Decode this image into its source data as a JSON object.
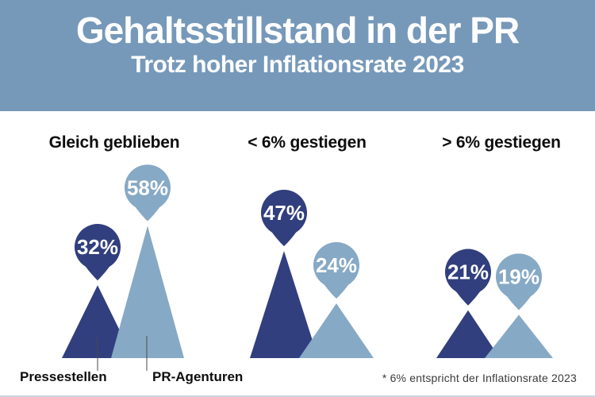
{
  "header": {
    "title": "Gehaltsstillstand in der PR",
    "subtitle": "Trotz hoher Inflationsrate 2023",
    "bg_color": "#7699ba",
    "text_color": "#ffffff"
  },
  "chart_data": {
    "type": "bar",
    "variant": "pictorial-triangles-with-balloon-labels",
    "unit": "%",
    "categories": [
      "Gleich geblieben",
      "< 6% gestiegen",
      "> 6% gestiegen"
    ],
    "series": [
      {
        "name": "Pressestellen",
        "values": [
          32,
          47,
          21
        ],
        "color": "#313f7e"
      },
      {
        "name": "PR-Agenturen",
        "values": [
          58,
          24,
          19
        ],
        "color": "#86a9c5"
      }
    ],
    "groups": [
      {
        "label": "Gleich geblieben",
        "values": {
          "pressestellen": 32,
          "pr_agenturen": 58
        }
      },
      {
        "label": "< 6% gestiegen",
        "values": {
          "pressestellen": 47,
          "pr_agenturen": 24
        }
      },
      {
        "label": "> 6% gestiegen",
        "values": {
          "pressestellen": 21,
          "pr_agenturen": 19
        }
      }
    ],
    "value_labels": [
      "32%",
      "58%",
      "47%",
      "24%",
      "21%",
      "19%"
    ],
    "legend_position": "bottom-left",
    "grid": false
  },
  "legend": {
    "pressestellen": "Pressestellen",
    "pr_agenturen": "PR-Agenturen"
  },
  "footnote": "* 6% entspricht der Inflationsrate 2023",
  "colors": {
    "dark_series": "#313f7e",
    "light_series": "#86a9c5",
    "heading_text": "#0d0d0d",
    "footnote_text": "#3a3a3a"
  }
}
